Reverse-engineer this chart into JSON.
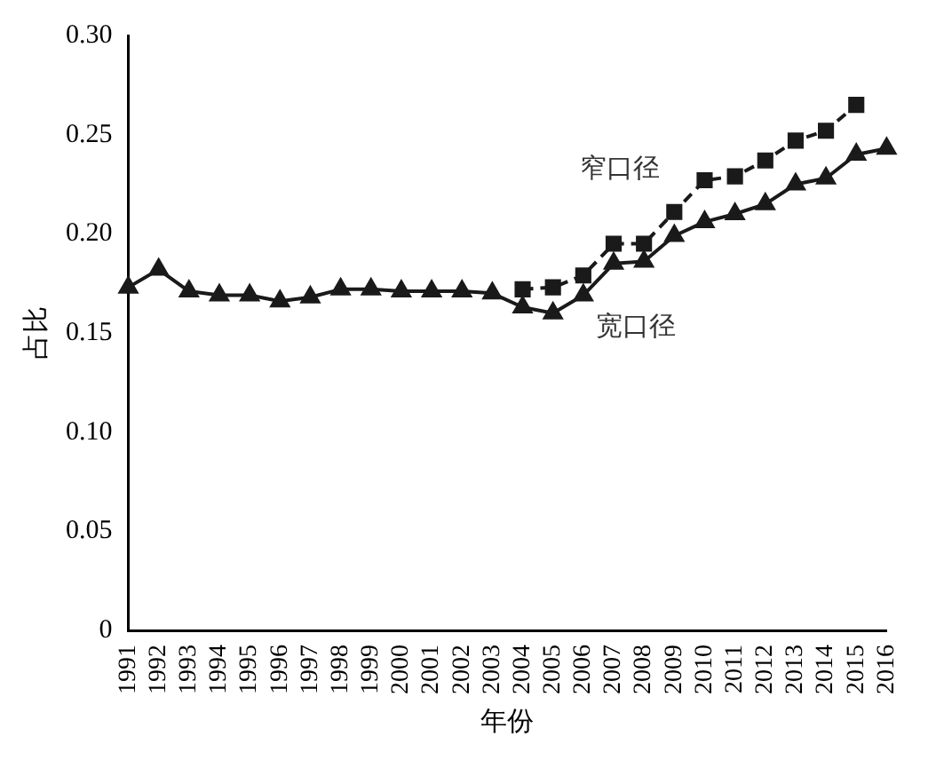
{
  "chart_data": {
    "type": "line",
    "xlabel": "年份",
    "ylabel": "占比",
    "categories": [
      "1991",
      "1992",
      "1993",
      "1994",
      "1995",
      "1996",
      "1997",
      "1998",
      "1999",
      "2000",
      "2001",
      "2002",
      "2003",
      "2004",
      "2005",
      "2006",
      "2007",
      "2008",
      "2009",
      "2010",
      "2011",
      "2012",
      "2013",
      "2014",
      "2015",
      "2016"
    ],
    "series": [
      {
        "name": "宽口径",
        "color": "#1a1a1a",
        "marker": "triangle",
        "line_style": "solid",
        "values": [
          0.173,
          0.182,
          0.171,
          0.169,
          0.169,
          0.166,
          0.168,
          0.172,
          0.172,
          0.171,
          0.171,
          0.171,
          0.17,
          0.163,
          0.16,
          0.169,
          0.185,
          0.186,
          0.199,
          0.206,
          0.21,
          0.215,
          0.225,
          0.228,
          0.24,
          0.243
        ]
      },
      {
        "name": "窄口径",
        "color": "#1a1a1a",
        "marker": "square",
        "line_style": "dashed",
        "values": [
          null,
          null,
          null,
          null,
          null,
          null,
          null,
          null,
          null,
          null,
          null,
          null,
          null,
          0.172,
          0.173,
          0.179,
          0.195,
          0.195,
          0.211,
          0.227,
          0.229,
          0.237,
          0.247,
          0.252,
          0.265,
          null
        ]
      }
    ],
    "ylim": [
      0,
      0.3
    ],
    "yticks": [
      {
        "value": 0,
        "label": "0"
      },
      {
        "value": 0.05,
        "label": "0.05"
      },
      {
        "value": 0.1,
        "label": "0.10"
      },
      {
        "value": 0.15,
        "label": "0.15"
      },
      {
        "value": 0.2,
        "label": "0.20"
      },
      {
        "value": 0.25,
        "label": "0.25"
      },
      {
        "value": 0.3,
        "label": "0.30"
      }
    ],
    "grid": false,
    "legend": false
  }
}
